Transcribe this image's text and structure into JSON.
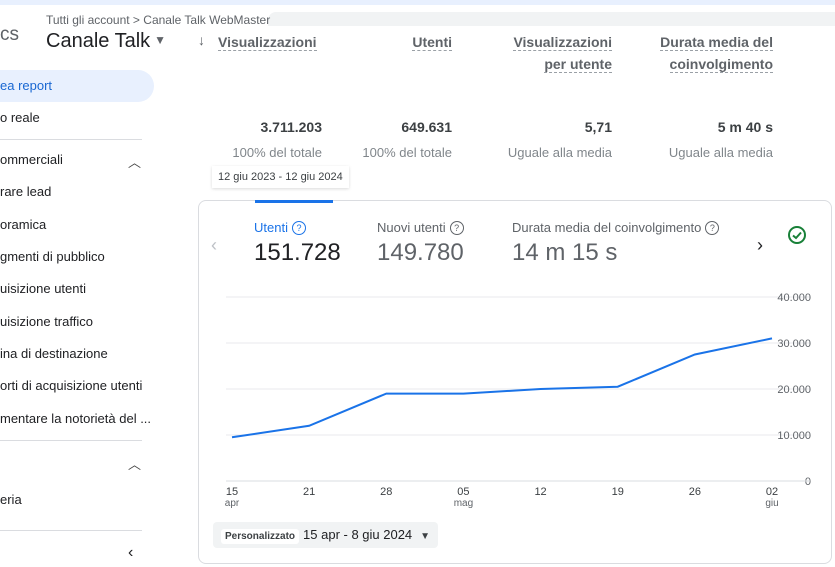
{
  "header": {
    "app_title_fragment": "cs",
    "breadcrumb": "Tutti gli account > Canale Talk WebMaster",
    "property": "Canale Talk"
  },
  "sidebar": {
    "items": [
      {
        "label": "ea report",
        "active": true
      },
      {
        "label": "o reale"
      },
      {
        "label": "ommerciali",
        "section": true
      },
      {
        "label": "rare lead"
      },
      {
        "label": "oramica"
      },
      {
        "label": "gmenti di pubblico"
      },
      {
        "label": "uisizione utenti"
      },
      {
        "label": "uisizione traffico"
      },
      {
        "label": "ina di destinazione"
      },
      {
        "label": "orti di acquisizione utenti"
      },
      {
        "label": "mentare la notorietà del ..."
      },
      {
        "label": "eria"
      }
    ],
    "collapse_icon": "chevron-left"
  },
  "metrics_table": {
    "columns": [
      {
        "header": "Visualizzazioni",
        "value": "3.711.203",
        "sub": "100% del totale",
        "sorted": true
      },
      {
        "header": "Utenti",
        "value": "649.631",
        "sub": "100% del totale"
      },
      {
        "header": "Visualizzazioni per utente",
        "value": "5,71",
        "sub": "Uguale alla media"
      },
      {
        "header": "Durata media del coinvolgimento",
        "value": "5 m 40 s",
        "sub": "Uguale alla media"
      }
    ]
  },
  "date_tooltip": "12 giu 2023 - 12 giu 2024",
  "chart_card": {
    "tabs": [
      {
        "label": "Utenti",
        "value": "151.728",
        "active": true
      },
      {
        "label": "Nuovi utenti",
        "value": "149.780"
      },
      {
        "label": "Durata media del coinvolgimento",
        "value": "14 m 15 s"
      }
    ],
    "period_tag": "Personalizzato",
    "period_range": "15 apr - 8 giu 2024",
    "accent_color": "#1a73e8",
    "status_color": "#188038"
  },
  "chart_data": {
    "type": "line",
    "x": [
      "15 apr",
      "21",
      "28",
      "05 mag",
      "12",
      "19",
      "26",
      "02 giu"
    ],
    "x_ticks": [
      {
        "label": "15",
        "sub": "apr"
      },
      {
        "label": "21",
        "sub": ""
      },
      {
        "label": "28",
        "sub": ""
      },
      {
        "label": "05",
        "sub": "mag"
      },
      {
        "label": "12",
        "sub": ""
      },
      {
        "label": "19",
        "sub": ""
      },
      {
        "label": "26",
        "sub": ""
      },
      {
        "label": "02",
        "sub": "giu"
      }
    ],
    "series": [
      {
        "values": [
          9500,
          12000,
          19000,
          19000,
          20000,
          20500,
          27500,
          31000
        ]
      }
    ],
    "y_ticks": [
      "40.000",
      "30.000",
      "20.000",
      "10.000",
      "0"
    ],
    "ylim": [
      0,
      40000
    ],
    "grid": true
  }
}
